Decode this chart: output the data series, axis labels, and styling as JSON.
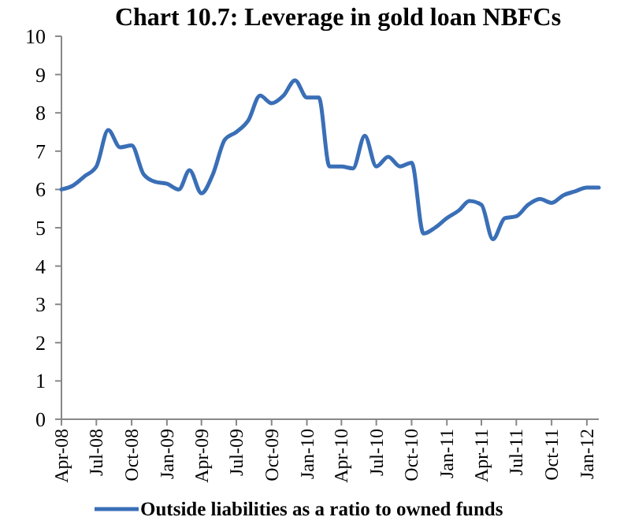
{
  "chart_data": {
    "type": "line",
    "title": "Chart  10.7: Leverage in gold loan NBFCs",
    "x": [
      "2008-04",
      "2008-05",
      "2008-06",
      "2008-07",
      "2008-08",
      "2008-09",
      "2008-10",
      "2008-11",
      "2008-12",
      "2009-01",
      "2009-02",
      "2009-03",
      "2009-04",
      "2009-05",
      "2009-06",
      "2009-07",
      "2009-08",
      "2009-09",
      "2009-10",
      "2009-11",
      "2009-12",
      "2010-01",
      "2010-02",
      "2010-03",
      "2010-04",
      "2010-05",
      "2010-06",
      "2010-07",
      "2010-08",
      "2010-09",
      "2010-10",
      "2010-11",
      "2010-12",
      "2011-01",
      "2011-02",
      "2011-03",
      "2011-04",
      "2011-05",
      "2011-06",
      "2011-07",
      "2011-08",
      "2011-09",
      "2011-10",
      "2011-11",
      "2011-12",
      "2012-01",
      "2012-02"
    ],
    "series": [
      {
        "name": "Outside liabilities as a ratio to owned funds",
        "color": "#3a6fb7",
        "values": [
          6.0,
          6.1,
          6.35,
          6.6,
          7.55,
          7.1,
          7.15,
          6.4,
          6.2,
          6.15,
          6.0,
          6.5,
          5.9,
          6.4,
          7.3,
          7.5,
          7.8,
          8.45,
          8.25,
          8.45,
          8.85,
          8.4,
          8.4,
          6.6,
          6.6,
          6.55,
          7.4,
          6.6,
          6.85,
          6.6,
          6.7,
          4.85,
          5.0,
          5.25,
          5.45,
          5.7,
          5.6,
          4.7,
          5.25,
          5.3,
          5.6,
          5.75,
          5.65,
          5.85,
          5.95,
          6.05,
          6.05
        ]
      }
    ],
    "xlim": [
      "2008-04",
      "2012-02"
    ],
    "xticks": [
      {
        "value": "2008-04",
        "label": "Apr-08"
      },
      {
        "value": "2008-07",
        "label": "Jul-08"
      },
      {
        "value": "2008-10",
        "label": "Oct-08"
      },
      {
        "value": "2009-01",
        "label": "Jan-09"
      },
      {
        "value": "2009-04",
        "label": "Apr-09"
      },
      {
        "value": "2009-07",
        "label": "Jul-09"
      },
      {
        "value": "2009-10",
        "label": "Oct-09"
      },
      {
        "value": "2010-01",
        "label": "Jan-10"
      },
      {
        "value": "2010-04",
        "label": "Apr-10"
      },
      {
        "value": "2010-07",
        "label": "Jul-10"
      },
      {
        "value": "2010-10",
        "label": "Oct-10"
      },
      {
        "value": "2011-01",
        "label": "Jan-11"
      },
      {
        "value": "2011-04",
        "label": "Apr-11"
      },
      {
        "value": "2011-07",
        "label": "Jul-11"
      },
      {
        "value": "2011-10",
        "label": "Oct-11"
      },
      {
        "value": "2012-01",
        "label": "Jan-12"
      }
    ],
    "ylim": [
      0,
      10
    ],
    "yticks": [
      0,
      1,
      2,
      3,
      4,
      5,
      6,
      7,
      8,
      9,
      10
    ],
    "grid": false,
    "legend": "bottom",
    "marker": "none",
    "line_style": "solid"
  }
}
